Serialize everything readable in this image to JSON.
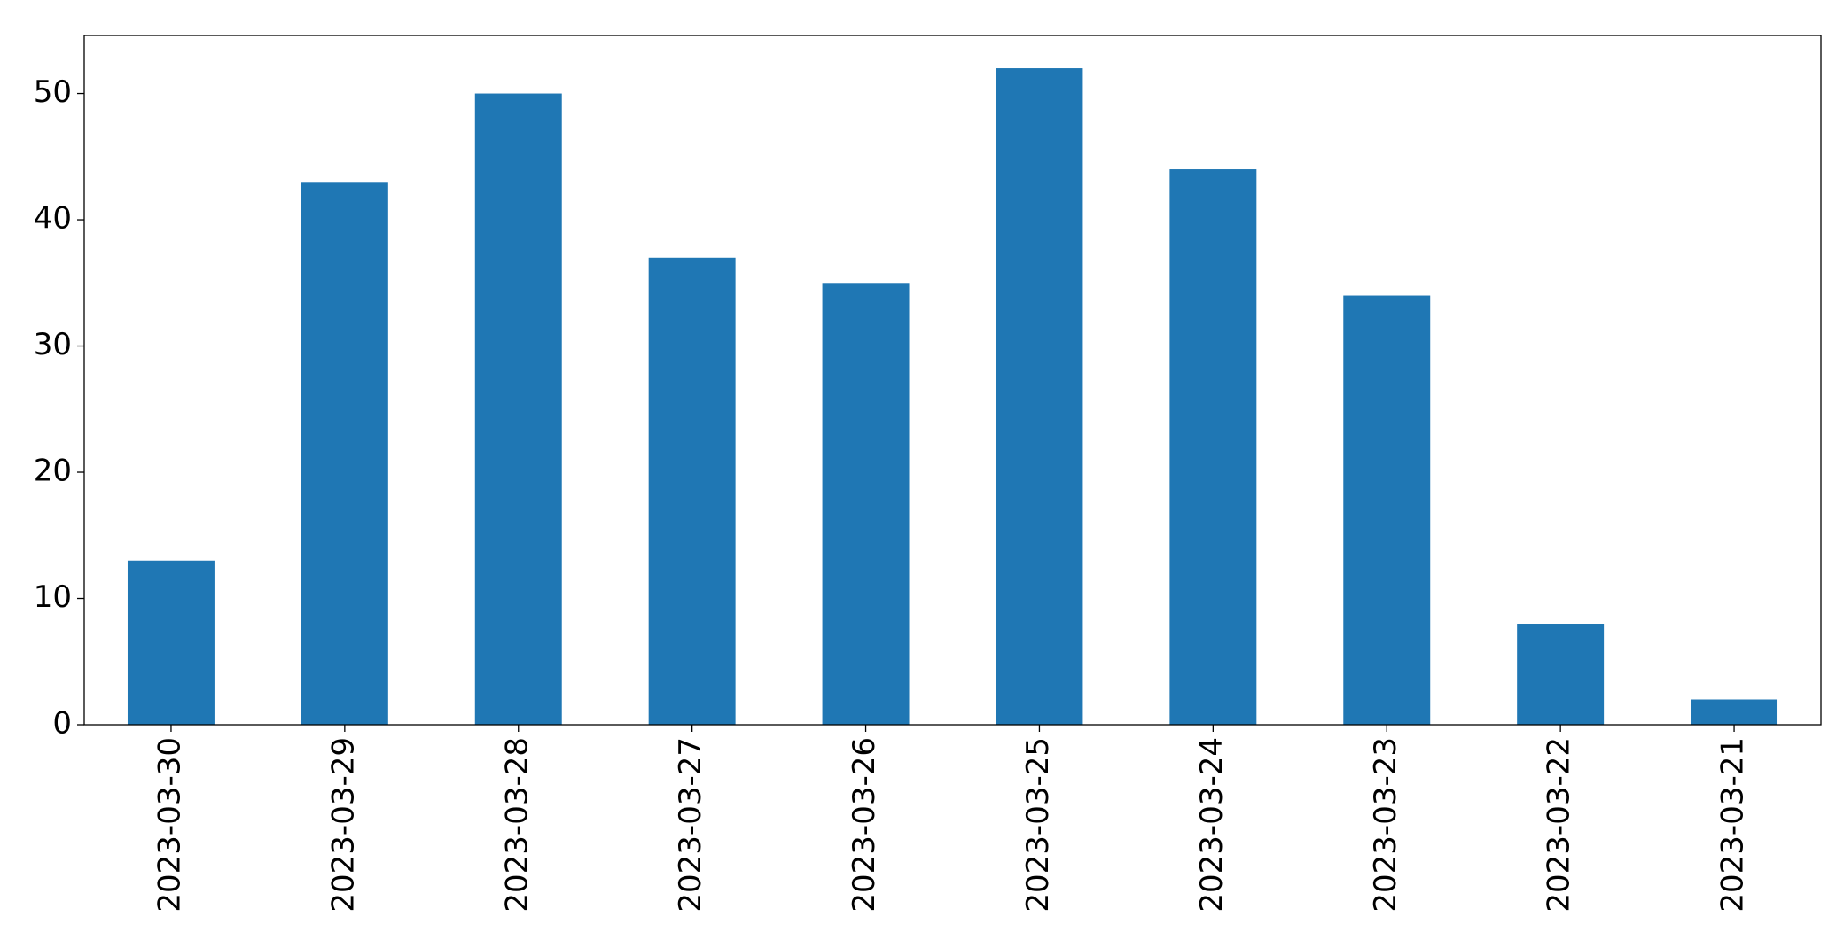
{
  "chart_data": {
    "type": "bar",
    "categories": [
      "2023-03-30",
      "2023-03-29",
      "2023-03-28",
      "2023-03-27",
      "2023-03-26",
      "2023-03-25",
      "2023-03-24",
      "2023-03-23",
      "2023-03-22",
      "2023-03-21"
    ],
    "values": [
      13,
      43,
      50,
      37,
      35,
      52,
      44,
      34,
      8,
      2
    ],
    "color": "#1f77b4",
    "ylim": [
      0,
      54.6
    ],
    "yticks": [
      0,
      10,
      20,
      30,
      40,
      50
    ],
    "grid": false
  }
}
